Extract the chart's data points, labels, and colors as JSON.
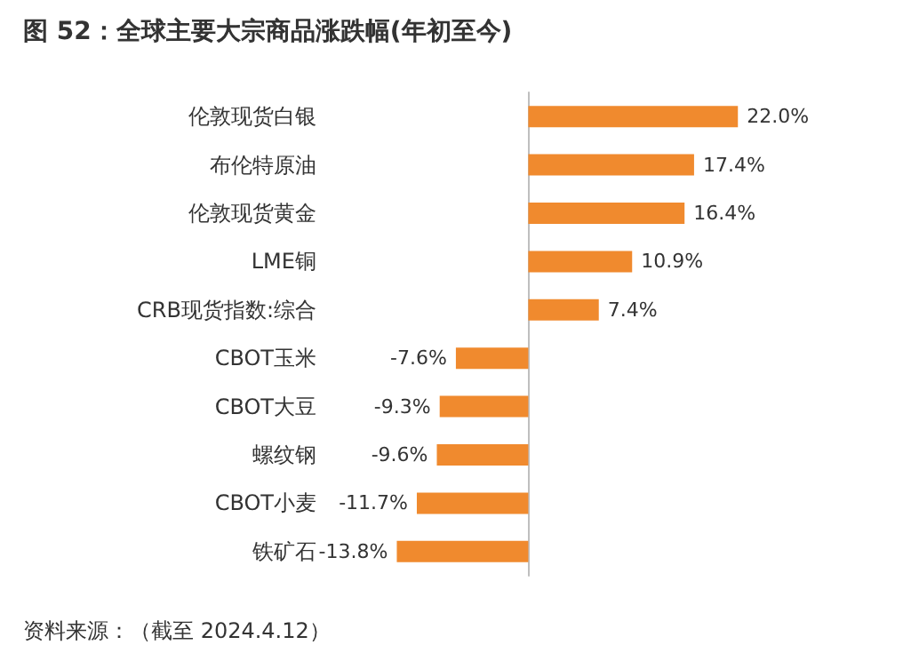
{
  "chart_data": {
    "type": "bar",
    "orientation": "horizontal",
    "title": "图 52：全球主要大宗商品涨跌幅(年初至今)",
    "categories": [
      "伦敦现货白银",
      "布伦特原油",
      "伦敦现货黄金",
      "LME铜",
      "CRB现货指数:综合",
      "CBOT玉米",
      "CBOT大豆",
      "螺纹钢",
      "CBOT小麦",
      "铁矿石"
    ],
    "values": [
      22.0,
      17.4,
      16.4,
      10.9,
      7.4,
      -7.6,
      -9.3,
      -9.6,
      -11.7,
      -13.8
    ],
    "value_labels": [
      "22.0%",
      "17.4%",
      "16.4%",
      "10.9%",
      "7.4%",
      "-7.6%",
      "-9.3%",
      "-9.6%",
      "-11.7%",
      "-13.8%"
    ],
    "color": "#f08a2e",
    "annotations": [
      "资料来源：（截至 2024.4.12）"
    ]
  }
}
